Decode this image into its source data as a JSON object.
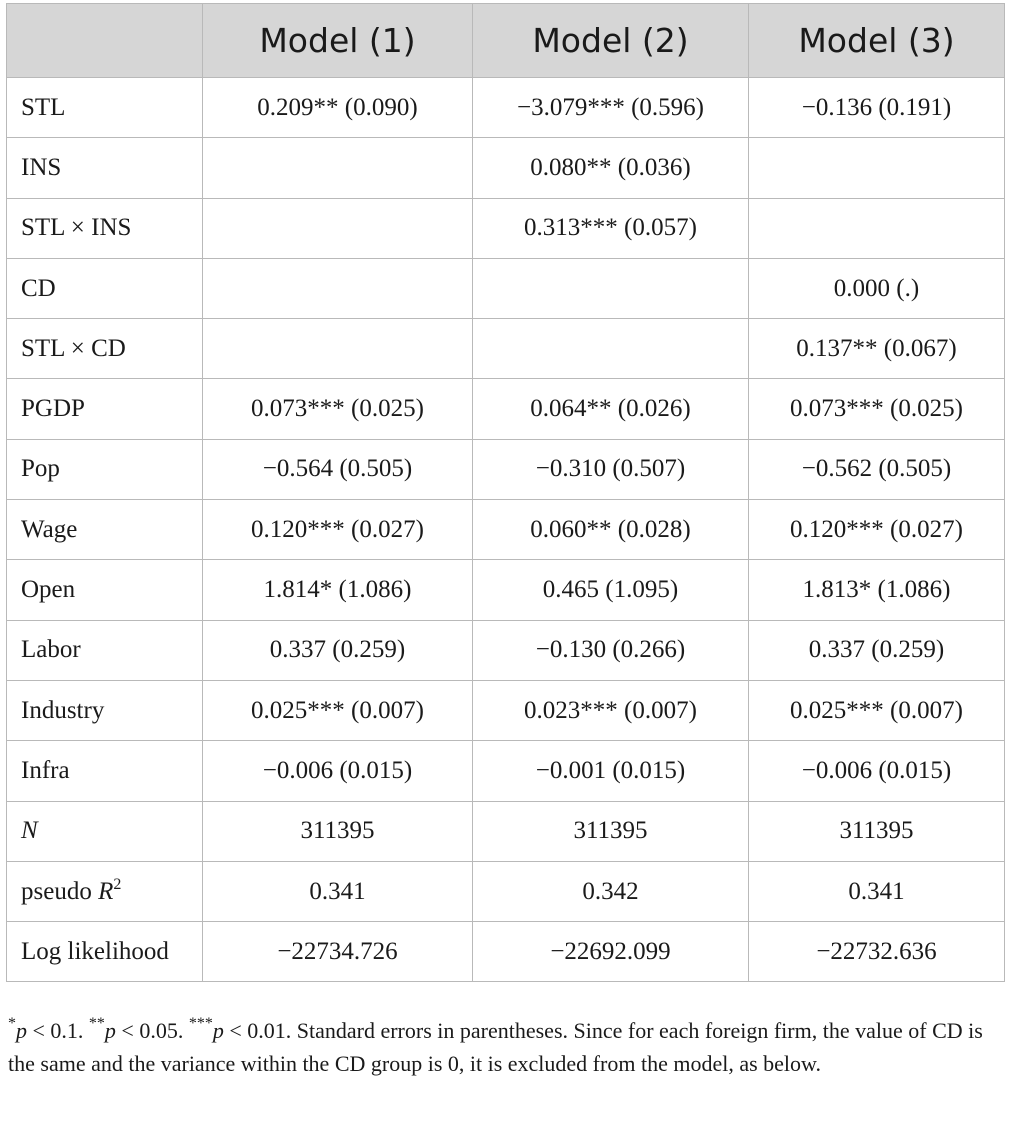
{
  "table": {
    "headers": [
      "",
      "Model (1)",
      "Model (2)",
      "Model (3)"
    ],
    "rows": [
      {
        "label": "STL",
        "cells": [
          "0.209** (0.090)",
          "−3.079*** (0.596)",
          "−0.136 (0.191)"
        ]
      },
      {
        "label": "INS",
        "cells": [
          "",
          "0.080** (0.036)",
          ""
        ]
      },
      {
        "label": "STL × INS",
        "cells": [
          "",
          "0.313*** (0.057)",
          ""
        ]
      },
      {
        "label": "CD",
        "cells": [
          "",
          "",
          "0.000 (.)"
        ]
      },
      {
        "label": "STL × CD",
        "cells": [
          "",
          "",
          "0.137** (0.067)"
        ]
      },
      {
        "label": "PGDP",
        "cells": [
          "0.073*** (0.025)",
          "0.064** (0.026)",
          "0.073*** (0.025)"
        ]
      },
      {
        "label": "Pop",
        "cells": [
          "−0.564 (0.505)",
          "−0.310 (0.507)",
          "−0.562 (0.505)"
        ]
      },
      {
        "label": "Wage",
        "cells": [
          "0.120*** (0.027)",
          "0.060** (0.028)",
          "0.120*** (0.027)"
        ]
      },
      {
        "label": "Open",
        "cells": [
          "1.814* (1.086)",
          "0.465 (1.095)",
          "1.813* (1.086)"
        ]
      },
      {
        "label": "Labor",
        "cells": [
          "0.337 (0.259)",
          "−0.130 (0.266)",
          "0.337 (0.259)"
        ]
      },
      {
        "label": "Industry",
        "cells": [
          "0.025*** (0.007)",
          "0.023*** (0.007)",
          "0.025*** (0.007)"
        ]
      },
      {
        "label": "Infra",
        "cells": [
          "−0.006 (0.015)",
          "−0.001 (0.015)",
          "−0.006 (0.015)"
        ]
      },
      {
        "label": "N",
        "cells": [
          "311395",
          "311395",
          "311395"
        ]
      },
      {
        "label_prefix": "pseudo ",
        "label_var": "R",
        "label_sup": "2",
        "cells": [
          "0.341",
          "0.342",
          "0.341"
        ]
      },
      {
        "label": "Log likelihood",
        "cells": [
          "−22734.726",
          "−22692.099",
          "−22732.636"
        ]
      }
    ]
  },
  "footnote": {
    "p1_mark": "*",
    "p1_var": "p",
    "p1_text": " < 0.1. ",
    "p2_mark": "**",
    "p2_var": "p",
    "p2_text": " < 0.05. ",
    "p3_mark": "***",
    "p3_var": "p",
    "p3_text": " < 0.01. ",
    "body": "Standard errors in parentheses. Since for each foreign firm, the value of CD is the same and the variance within the CD group is 0, it is excluded from the model, as below."
  }
}
